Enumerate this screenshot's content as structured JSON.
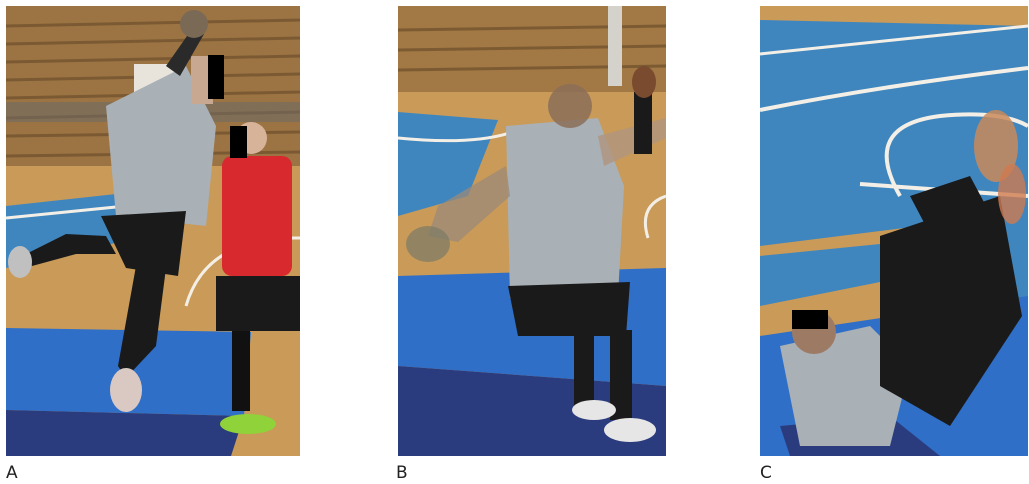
{
  "figure": {
    "panels": [
      {
        "label": "A",
        "redaction_boxes": 2
      },
      {
        "label": "B",
        "redaction_boxes": 0
      },
      {
        "label": "C",
        "redaction_boxes": 1
      }
    ]
  },
  "colors": {
    "court_blue": "#3f86bf",
    "wood_floor": "#c99a58",
    "mat_blue": "#2f6fc8",
    "mat_dark": "#2b3c7e",
    "shirt_gray": "#a9b0b6",
    "shorts_black": "#1a1a1a",
    "red_shirt": "#d82a2e",
    "shoe_green": "#8fd23a",
    "redaction": "#000000"
  }
}
